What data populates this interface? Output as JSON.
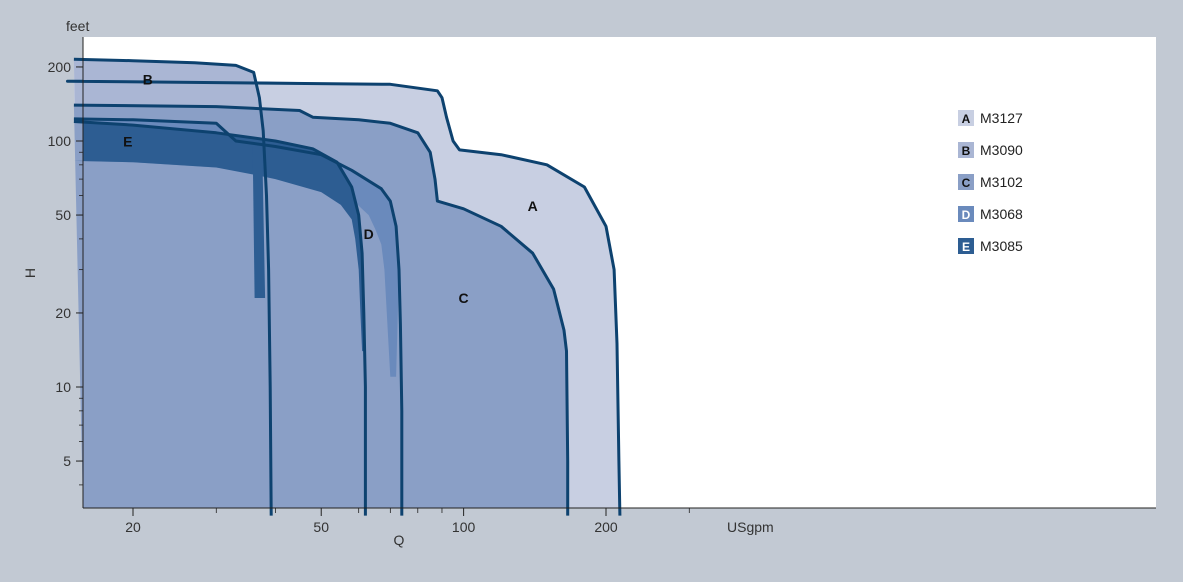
{
  "chart_data": {
    "type": "area",
    "title": "",
    "xlabel": "Q",
    "ylabel": "H",
    "x_unit": "USgpm",
    "y_unit": "feet",
    "x_scale": "log",
    "y_scale": "log",
    "xlim": [
      15,
      1000
    ],
    "ylim": [
      3,
      250
    ],
    "x_ticks": [
      {
        "value": 20,
        "label": "20"
      },
      {
        "value": 50,
        "label": "50"
      },
      {
        "value": 100,
        "label": "100"
      },
      {
        "value": 200,
        "label": "200"
      }
    ],
    "y_ticks": [
      {
        "value": 5,
        "label": "5"
      },
      {
        "value": 10,
        "label": "10"
      },
      {
        "value": 20,
        "label": "20"
      },
      {
        "value": 50,
        "label": "50"
      },
      {
        "value": 100,
        "label": "100"
      },
      {
        "value": 200,
        "label": "200"
      }
    ],
    "grid": false,
    "legend_position": "top-right",
    "series": [
      {
        "letter": "A",
        "name": "M3127",
        "color": "#c8cfe2",
        "curve": [
          [
            38.5,
            175
          ],
          [
            70,
            170
          ],
          [
            88,
            160
          ],
          [
            90,
            150
          ],
          [
            92,
            125
          ],
          [
            95,
            100
          ],
          [
            98,
            92
          ],
          [
            120,
            88
          ],
          [
            150,
            80
          ],
          [
            180,
            65
          ],
          [
            200,
            45
          ],
          [
            208,
            30
          ],
          [
            211,
            15
          ],
          [
            213,
            5
          ],
          [
            214,
            3
          ]
        ],
        "fill_extra": []
      },
      {
        "letter": "B",
        "name": "M3090",
        "color": "#aab6d4",
        "curve": [
          [
            15,
            215
          ],
          [
            20,
            212
          ],
          [
            27,
            208
          ],
          [
            33,
            203
          ],
          [
            36,
            190
          ],
          [
            37,
            150
          ],
          [
            37.7,
            110
          ],
          [
            38.3,
            60
          ],
          [
            38.7,
            30
          ],
          [
            39,
            10
          ],
          [
            39.2,
            3
          ]
        ],
        "fill_extra": []
      },
      {
        "letter": "C",
        "name": "M3102",
        "color": "#8a9fc6",
        "curve": [
          [
            15,
            140
          ],
          [
            30,
            138
          ],
          [
            45,
            133
          ],
          [
            48,
            125
          ],
          [
            60,
            122
          ],
          [
            70,
            118
          ],
          [
            80,
            108
          ],
          [
            85,
            90
          ],
          [
            87,
            70
          ],
          [
            88,
            57
          ],
          [
            100,
            53
          ],
          [
            120,
            45
          ],
          [
            140,
            35
          ],
          [
            155,
            25
          ],
          [
            163,
            17
          ],
          [
            165,
            14
          ],
          [
            166,
            5
          ],
          [
            166,
            3
          ]
        ],
        "fill_extra": []
      },
      {
        "letter": "D",
        "name": "M3068",
        "color": "#6a8abc",
        "curve": [
          [
            15,
            123
          ],
          [
            20,
            122
          ],
          [
            30,
            118
          ],
          [
            33,
            100
          ],
          [
            40,
            95
          ],
          [
            50,
            88
          ],
          [
            58,
            76
          ],
          [
            67,
            64
          ],
          [
            70,
            57
          ],
          [
            72,
            45
          ],
          [
            73,
            30
          ],
          [
            73.5,
            18
          ],
          [
            74,
            8
          ],
          [
            74,
            3
          ]
        ],
        "fill_extra": [
          [
            15,
            83
          ],
          [
            20,
            82
          ],
          [
            30,
            78
          ],
          [
            40,
            73
          ],
          [
            50,
            66
          ],
          [
            58,
            58
          ],
          [
            63,
            50
          ],
          [
            65,
            44
          ],
          [
            67,
            38
          ],
          [
            68,
            30
          ],
          [
            69,
            18
          ],
          [
            70,
            11
          ],
          [
            72,
            11
          ]
        ]
      },
      {
        "letter": "E",
        "name": "M3085",
        "color": "#2d5d92",
        "curve": [
          [
            15,
            120
          ],
          [
            20,
            116
          ],
          [
            30,
            108
          ],
          [
            40,
            100
          ],
          [
            48,
            93
          ],
          [
            54,
            82
          ],
          [
            58,
            65
          ],
          [
            60,
            50
          ],
          [
            61,
            35
          ],
          [
            61.5,
            20
          ],
          [
            62,
            10
          ],
          [
            62,
            3
          ]
        ],
        "fill_extra": [
          [
            15,
            83
          ],
          [
            20,
            82
          ],
          [
            30,
            78
          ],
          [
            36,
            73
          ],
          [
            40,
            70
          ],
          [
            50,
            62
          ],
          [
            55,
            55
          ],
          [
            58,
            48
          ],
          [
            59,
            40
          ],
          [
            60,
            30
          ],
          [
            60.5,
            20
          ],
          [
            61,
            14
          ],
          [
            61.5,
            14
          ]
        ],
        "notch_x": 37.5,
        "notch_bottom_y": 23
      }
    ],
    "base_fill_color": "#8a9fc6",
    "outline_color": "#0d426f"
  }
}
